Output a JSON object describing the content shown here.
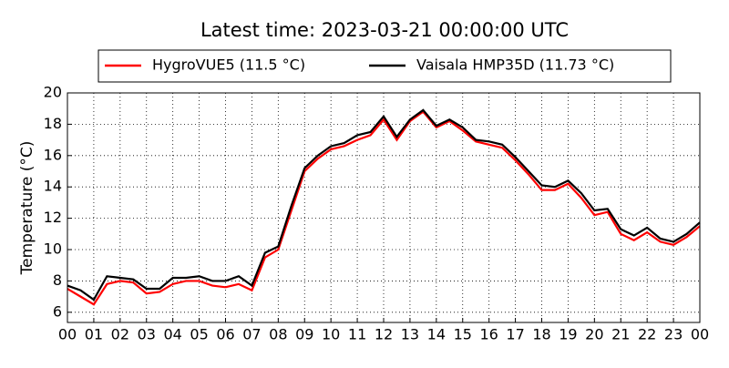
{
  "chart_data": {
    "type": "line",
    "title": "Latest time: 2023-03-21 00:00:00 UTC",
    "y_label": "Temperature (°C)",
    "x": [
      0,
      0.5,
      1,
      1.5,
      2,
      2.5,
      3,
      3.5,
      4,
      4.5,
      5,
      5.5,
      6,
      6.5,
      7,
      7.5,
      8,
      8.5,
      9,
      9.5,
      10,
      10.5,
      11,
      11.5,
      12,
      12.5,
      13,
      13.5,
      14,
      14.5,
      15,
      15.5,
      16,
      16.5,
      17,
      17.5,
      18,
      18.5,
      19,
      19.5,
      20,
      20.5,
      21,
      21.5,
      22,
      22.5,
      23,
      23.5,
      24
    ],
    "series": [
      {
        "name": "HygroVUE5 (11.5 °C)",
        "color": "#ff0000",
        "values": [
          7.5,
          7.0,
          6.5,
          7.8,
          8.0,
          7.9,
          7.2,
          7.3,
          7.8,
          8.0,
          8.0,
          7.7,
          7.6,
          7.8,
          7.4,
          9.5,
          10.0,
          12.5,
          15.0,
          15.8,
          16.4,
          16.6,
          17.0,
          17.3,
          18.3,
          17.0,
          18.2,
          18.8,
          17.8,
          18.2,
          17.6,
          16.9,
          16.7,
          16.5,
          15.7,
          14.8,
          13.8,
          13.8,
          14.2,
          13.3,
          12.2,
          12.4,
          11.0,
          10.6,
          11.1,
          10.5,
          10.3,
          10.8,
          11.5
        ]
      },
      {
        "name": "Vaisala HMP35D (11.73 °C)",
        "color": "#000000",
        "values": [
          7.7,
          7.4,
          6.8,
          8.3,
          8.2,
          8.1,
          7.5,
          7.5,
          8.2,
          8.2,
          8.3,
          8.0,
          8.0,
          8.3,
          7.7,
          9.8,
          10.2,
          12.8,
          15.2,
          16.0,
          16.6,
          16.8,
          17.3,
          17.5,
          18.5,
          17.2,
          18.3,
          18.9,
          17.9,
          18.3,
          17.8,
          17.0,
          16.9,
          16.7,
          15.9,
          15.0,
          14.1,
          14.0,
          14.4,
          13.6,
          12.5,
          12.6,
          11.3,
          10.9,
          11.4,
          10.7,
          10.5,
          11.0,
          11.73
        ]
      }
    ],
    "xlim": [
      0,
      24
    ],
    "xticks": [
      {
        "value": 0,
        "label": "00"
      },
      {
        "value": 1,
        "label": "01"
      },
      {
        "value": 2,
        "label": "02"
      },
      {
        "value": 3,
        "label": "03"
      },
      {
        "value": 4,
        "label": "04"
      },
      {
        "value": 5,
        "label": "05"
      },
      {
        "value": 6,
        "label": "06"
      },
      {
        "value": 7,
        "label": "07"
      },
      {
        "value": 8,
        "label": "08"
      },
      {
        "value": 9,
        "label": "09"
      },
      {
        "value": 10,
        "label": "10"
      },
      {
        "value": 11,
        "label": "11"
      },
      {
        "value": 12,
        "label": "12"
      },
      {
        "value": 13,
        "label": "13"
      },
      {
        "value": 14,
        "label": "14"
      },
      {
        "value": 15,
        "label": "15"
      },
      {
        "value": 16,
        "label": "16"
      },
      {
        "value": 17,
        "label": "17"
      },
      {
        "value": 18,
        "label": "18"
      },
      {
        "value": 19,
        "label": "19"
      },
      {
        "value": 20,
        "label": "20"
      },
      {
        "value": 21,
        "label": "21"
      },
      {
        "value": 22,
        "label": "22"
      },
      {
        "value": 23,
        "label": "23"
      },
      {
        "value": 24,
        "label": "00"
      }
    ],
    "ylim": [
      5.35,
      20
    ],
    "yticks": [
      6,
      8,
      10,
      12,
      14,
      16,
      18,
      20
    ],
    "grid": true,
    "legend": "top"
  }
}
